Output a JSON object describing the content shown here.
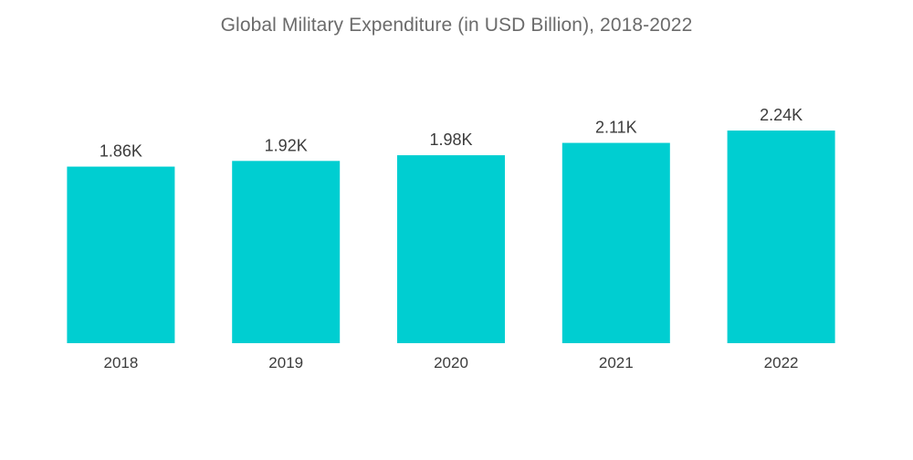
{
  "chart_data": {
    "type": "bar",
    "title": "Global Military Expenditure (in USD Billion), 2018-2022",
    "xlabel": "",
    "ylabel": "",
    "categories": [
      "2018",
      "2019",
      "2020",
      "2021",
      "2022"
    ],
    "values": [
      1860,
      1920,
      1980,
      2110,
      2240
    ],
    "value_labels": [
      "1.86K",
      "1.92K",
      "1.98K",
      "2.11K",
      "2.24K"
    ],
    "ylim": [
      0,
      2500
    ],
    "grid": false,
    "legend": "none",
    "bar_color": "#00ced1",
    "label_color": "#3c3c3c",
    "title_color": "#6b6b6b"
  }
}
